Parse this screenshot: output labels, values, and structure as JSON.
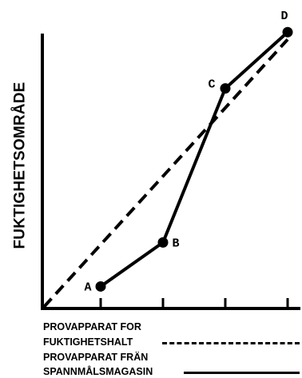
{
  "axes": {
    "ylabel": "FUKTIGHETSOMRÅDE",
    "xlabel": ""
  },
  "points": [
    {
      "label": "A",
      "x": 1,
      "y": 0.09
    },
    {
      "label": "B",
      "x": 2,
      "y": 0.27
    },
    {
      "label": "C",
      "x": 3,
      "y": 0.9
    },
    {
      "label": "D",
      "x": 4,
      "y": 1.13
    }
  ],
  "dashed_line": {
    "from": {
      "x": 0,
      "y": 0
    },
    "to": {
      "x": 4,
      "y": 1.1
    }
  },
  "x_ticks": [
    1,
    2,
    3,
    4
  ],
  "legend": {
    "line1": "PROVAPPARAT FOR",
    "line2": "FUKTIGHETSHALT",
    "line3": "PROVAPPARAT FRÄN",
    "line4": "SPANNMÅLSMAGASIN",
    "dashed_series": "PROVAPPARAT FOR FUKTIGHETSHALT",
    "solid_series": "PROVAPPARAT FRÄN SPANNMÅLSMAGASIN"
  },
  "colors": {
    "ink": "#000000",
    "background": "#ffffff"
  }
}
